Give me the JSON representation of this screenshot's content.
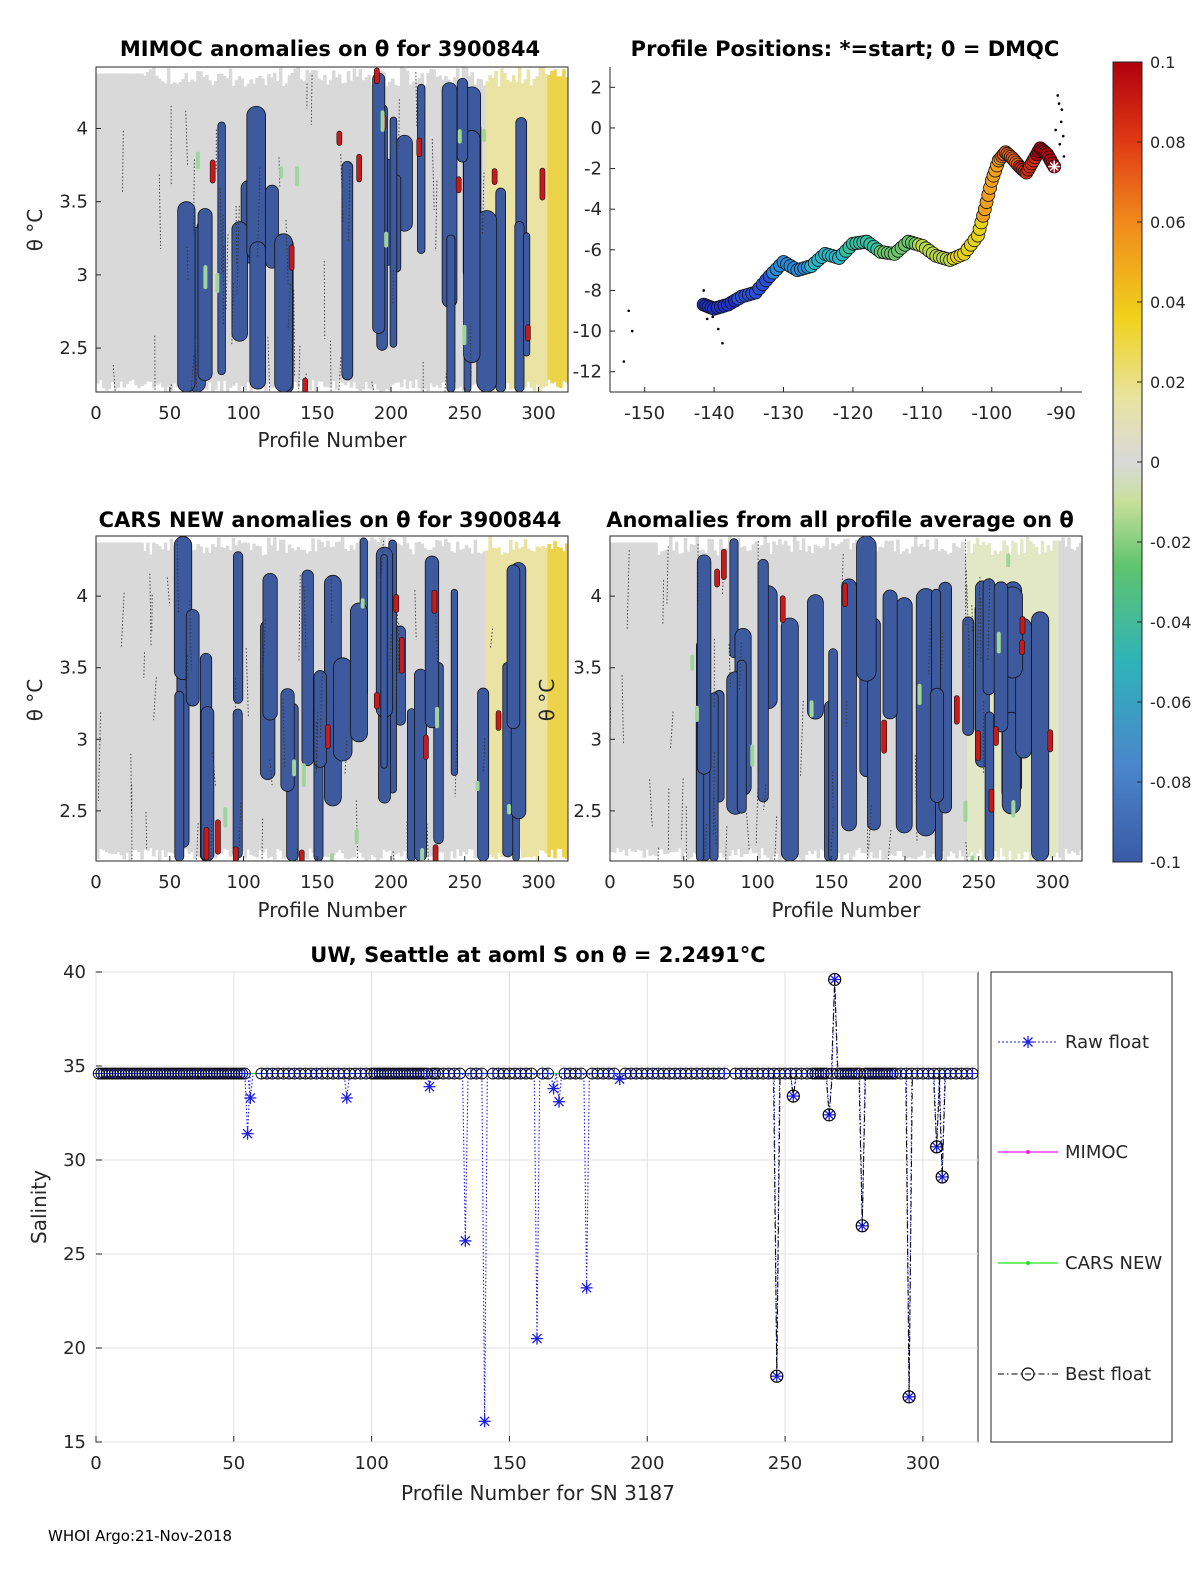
{
  "colors": {
    "blue_anom": "#3e5a9e",
    "gray_anom": "#d9d9d9",
    "yellow_anom": "#ecd34a",
    "red_anom": "#c81a1a",
    "green_anom": "#9fd49a",
    "raw_float": "#1f1fe0",
    "mimoc": "#e61ee6",
    "cars": "#1ee61e",
    "best": "#000000"
  },
  "footer": "WHOI Argo:21-Nov-2018",
  "chart_data": [
    {
      "id": "mimoc",
      "type": "heatmap",
      "title": "MIMOC anomalies on θ  for 3900844",
      "xlabel": "Profile Number",
      "ylabel": "θ °C",
      "xlim": [
        0,
        320
      ],
      "ylim": [
        2.2,
        4.42
      ],
      "xticks": [
        0,
        50,
        100,
        150,
        200,
        250,
        300
      ],
      "yticks": [
        2.5,
        3,
        3.5,
        4
      ],
      "ytick_labels": [
        "2.5",
        "3",
        "3.5",
        "4"
      ]
    },
    {
      "id": "positions",
      "type": "scatter",
      "title": "Profile Positions: *=start; 0 = DMQC",
      "xlim": [
        -155,
        -87
      ],
      "ylim": [
        -13,
        3
      ],
      "xticks": [
        -150,
        -140,
        -130,
        -120,
        -110,
        -100,
        -90
      ],
      "yticks": [
        2,
        0,
        -2,
        -4,
        -6,
        -8,
        -10,
        -12
      ],
      "track_lon": [
        -91,
        -92,
        -93,
        -94,
        -95,
        -96,
        -97,
        -98,
        -99,
        -100,
        -101,
        -102,
        -104,
        -106,
        -108,
        -110,
        -112,
        -114,
        -116,
        -118,
        -120,
        -122,
        -124,
        -126,
        -128,
        -130,
        -132,
        -134,
        -136,
        -138,
        -140,
        -141.5
      ],
      "track_lat": [
        -1.9,
        -1.3,
        -1.0,
        -1.6,
        -2.2,
        -1.9,
        -1.5,
        -1.2,
        -1.6,
        -2.6,
        -4.0,
        -5.3,
        -6.2,
        -6.5,
        -6.3,
        -5.8,
        -5.6,
        -6.2,
        -6.1,
        -5.6,
        -5.7,
        -6.4,
        -6.2,
        -6.8,
        -7.0,
        -6.6,
        -7.3,
        -8.1,
        -8.3,
        -8.7,
        -8.9,
        -8.7
      ],
      "colorbar": {
        "ticks": [
          0.1,
          0.08,
          0.06,
          0.04,
          0.02,
          0,
          -0.02,
          -0.04,
          -0.06,
          -0.08,
          -0.1
        ],
        "tick_labels": [
          "0.1",
          "0.08",
          "0.06",
          "0.04",
          "0.02",
          "0",
          "-0.02",
          "-0.04",
          "-0.06",
          "-0.08",
          "-0.1"
        ],
        "range": [
          -0.1,
          0.1
        ]
      }
    },
    {
      "id": "cars",
      "type": "heatmap",
      "title": "CARS NEW anomalies on θ for 3900844",
      "xlabel": "Profile Number",
      "ylabel": "θ °C",
      "xlim": [
        0,
        320
      ],
      "ylim": [
        2.15,
        4.42
      ],
      "xticks": [
        0,
        50,
        100,
        150,
        200,
        250,
        300
      ],
      "yticks": [
        2.5,
        3,
        3.5,
        4
      ],
      "ytick_labels": [
        "2.5",
        "3",
        "3.5",
        "4"
      ]
    },
    {
      "id": "avg",
      "type": "heatmap",
      "title": "Anomalies from all profile average on θ",
      "xlabel": "Profile Number",
      "ylabel": "θ °C",
      "xlim": [
        0,
        320
      ],
      "ylim": [
        2.15,
        4.42
      ],
      "xticks": [
        0,
        50,
        100,
        150,
        200,
        250,
        300
      ],
      "yticks": [
        2.5,
        3,
        3.5,
        4
      ],
      "ytick_labels": [
        "2.5",
        "3",
        "3.5",
        "4"
      ]
    },
    {
      "id": "salinity",
      "type": "line",
      "title": "UW, Seattle at aoml S on θ = 2.2491°C",
      "xlabel": "Profile Number for SN 3187",
      "ylabel": "Salinity",
      "xlim": [
        0,
        320
      ],
      "ylim": [
        15,
        40
      ],
      "xticks": [
        0,
        50,
        100,
        150,
        200,
        250,
        300
      ],
      "yticks": [
        15,
        20,
        25,
        30,
        35,
        40
      ],
      "baseline": 34.6,
      "series": [
        {
          "name": "Raw float",
          "x": [
            55,
            56,
            91,
            121,
            134,
            141,
            160,
            166,
            168,
            178,
            190,
            247,
            253,
            266,
            268,
            278,
            295,
            305,
            307
          ],
          "y": [
            31.4,
            33.3,
            33.3,
            33.9,
            25.7,
            16.1,
            20.5,
            33.8,
            33.1,
            23.2,
            34.3,
            18.5,
            33.4,
            32.4,
            39.6,
            26.5,
            17.4,
            30.7,
            29.1
          ]
        },
        {
          "name": "MIMOC",
          "value": 34.6
        },
        {
          "name": "CARS NEW",
          "value": 34.6
        },
        {
          "name": "Best float",
          "x": [
            247,
            253,
            266,
            268,
            278,
            295,
            305,
            307
          ],
          "y": [
            18.5,
            33.4,
            32.4,
            39.6,
            26.5,
            17.4,
            30.7,
            29.1
          ]
        }
      ]
    }
  ]
}
